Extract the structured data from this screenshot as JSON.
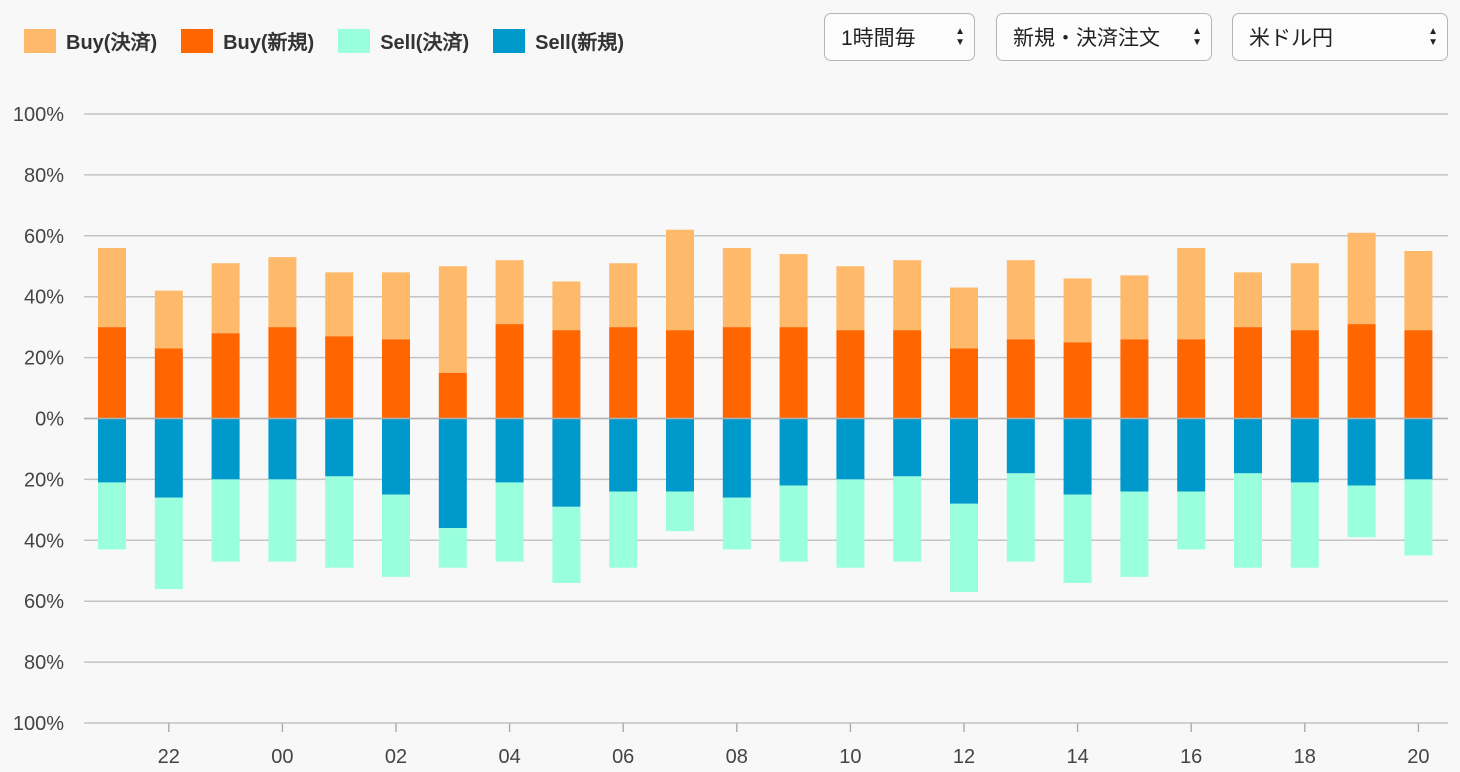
{
  "legend": [
    {
      "label": "Buy(決済)",
      "color": "#ffb96b"
    },
    {
      "label": "Buy(新規)",
      "color": "#ff6600"
    },
    {
      "label": "Sell(決済)",
      "color": "#99ffdd"
    },
    {
      "label": "Sell(新規)",
      "color": "#0099cc"
    }
  ],
  "controls": {
    "interval": {
      "value": "1時間毎",
      "icon": "updown-arrows-icon"
    },
    "order_type": {
      "value": "新規・決済注文",
      "icon": "updown-arrows-icon"
    },
    "currency": {
      "value": "米ドル円",
      "icon": "updown-arrows-icon"
    }
  },
  "chart_data": {
    "type": "bar",
    "stacked": true,
    "diverging": true,
    "title": "",
    "xlabel": "",
    "ylabel": "",
    "ylim": [
      -100,
      100
    ],
    "y_ticks": [
      {
        "value": 100,
        "label": "100%"
      },
      {
        "value": 80,
        "label": "80%"
      },
      {
        "value": 60,
        "label": "60%"
      },
      {
        "value": 40,
        "label": "40%"
      },
      {
        "value": 20,
        "label": "20%"
      },
      {
        "value": 0,
        "label": "0%"
      },
      {
        "value": -20,
        "label": "20%"
      },
      {
        "value": -40,
        "label": "40%"
      },
      {
        "value": -60,
        "label": "60%"
      },
      {
        "value": -80,
        "label": "80%"
      },
      {
        "value": -100,
        "label": "100%"
      }
    ],
    "x_ticks": [
      {
        "index": 1,
        "label": "22"
      },
      {
        "index": 3,
        "label": "00"
      },
      {
        "index": 5,
        "label": "02"
      },
      {
        "index": 7,
        "label": "04"
      },
      {
        "index": 9,
        "label": "06"
      },
      {
        "index": 11,
        "label": "08"
      },
      {
        "index": 13,
        "label": "10"
      },
      {
        "index": 15,
        "label": "12"
      },
      {
        "index": 17,
        "label": "14"
      },
      {
        "index": 19,
        "label": "16"
      },
      {
        "index": 21,
        "label": "18"
      },
      {
        "index": 23,
        "label": "20"
      }
    ],
    "categories": [
      "21",
      "22",
      "23",
      "00",
      "01",
      "02",
      "03",
      "04",
      "05",
      "06",
      "07",
      "08",
      "09",
      "10",
      "11",
      "12",
      "13",
      "14",
      "15",
      "16",
      "17",
      "18",
      "19",
      "20"
    ],
    "grid": true,
    "legend_position": "top-left",
    "series": [
      {
        "name": "Buy(新規)",
        "color": "#ff6600",
        "direction": "up",
        "values": [
          30,
          23,
          28,
          30,
          27,
          26,
          15,
          31,
          29,
          30,
          29,
          30,
          30,
          29,
          29,
          23,
          26,
          25,
          26,
          26,
          30,
          29,
          31,
          29
        ]
      },
      {
        "name": "Buy(決済)",
        "color": "#ffb96b",
        "direction": "up",
        "values": [
          26,
          19,
          23,
          23,
          21,
          22,
          35,
          21,
          16,
          21,
          33,
          26,
          24,
          21,
          23,
          20,
          26,
          21,
          21,
          30,
          18,
          22,
          30,
          26
        ]
      },
      {
        "name": "Sell(新規)",
        "color": "#0099cc",
        "direction": "down",
        "values": [
          21,
          26,
          20,
          20,
          19,
          25,
          36,
          21,
          29,
          24,
          24,
          26,
          22,
          20,
          19,
          28,
          18,
          25,
          24,
          24,
          18,
          21,
          22,
          20
        ]
      },
      {
        "name": "Sell(決済)",
        "color": "#99ffdd",
        "direction": "down",
        "values": [
          22,
          30,
          27,
          27,
          30,
          27,
          13,
          26,
          25,
          25,
          13,
          17,
          25,
          29,
          28,
          29,
          29,
          29,
          28,
          19,
          31,
          28,
          17,
          25
        ]
      }
    ]
  }
}
